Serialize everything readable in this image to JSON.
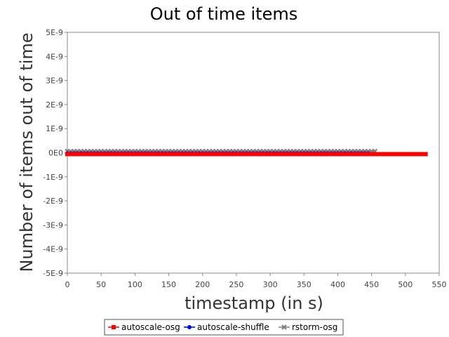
{
  "chart_data": {
    "type": "line",
    "title": "Out of time items",
    "xlabel": "timestamp (in s)",
    "ylabel": "Number of items out of time",
    "xlim": [
      0,
      550
    ],
    "ylim": [
      -5e-09,
      5e-09
    ],
    "x_ticks": [
      "0",
      "50",
      "100",
      "150",
      "200",
      "250",
      "300",
      "350",
      "400",
      "450",
      "500",
      "550"
    ],
    "y_ticks": [
      "5E-9",
      "4E-9",
      "3E-9",
      "2E-9",
      "1E-9",
      "0E0",
      "-1E-9",
      "-2E-9",
      "-3E-9",
      "-4E-9",
      "-5E-9"
    ],
    "grid": false,
    "legend_position": "bottom-center",
    "series": [
      {
        "name": "autoscale-osg",
        "color": "#ff0000",
        "marker": "square",
        "x_start": 0,
        "x_end": 530,
        "x_step": 5,
        "value": 0
      },
      {
        "name": "autoscale-shuffle",
        "color": "#0000ff",
        "marker": "circle",
        "x_start": 0,
        "x_end": 445,
        "x_step": 5,
        "value": 0
      },
      {
        "name": "rstorm-osg",
        "color": "#808080",
        "marker": "x",
        "x_start": 0,
        "x_end": 455,
        "x_step": 5,
        "value": 0
      }
    ]
  }
}
